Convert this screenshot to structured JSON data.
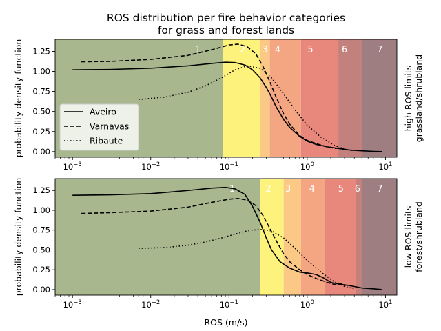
{
  "title_line1": "ROS distribution per fire behavior categories",
  "title_line2": "for grass and forest lands",
  "colors": {
    "cat1": "#a8b78e",
    "cat2": "#fdf37c",
    "cat3": "#fbc985",
    "cat4": "#f4a582",
    "cat5": "#e8877b",
    "cat6": "#c3817d",
    "cat7": "#9e7e80"
  },
  "chart_data": [
    {
      "type": "line",
      "panel": "top",
      "title": "ROS distribution per fire behavior categories for grass and forest lands",
      "xlabel": "",
      "ylabel": "probability density function",
      "side_label_line1": "high ROS limits",
      "side_label_line2": "grassland/shrubland",
      "xscale": "log",
      "xlim": [
        0.0006,
        14
      ],
      "ylim": [
        -0.07,
        1.4
      ],
      "xticks": [
        {
          "v": 0.001,
          "label": "10",
          "exp": "−3"
        },
        {
          "v": 0.01,
          "label": "10",
          "exp": "−2"
        },
        {
          "v": 0.1,
          "label": "10",
          "exp": "−1"
        },
        {
          "v": 1,
          "label": "10",
          "exp": "0"
        },
        {
          "v": 10,
          "label": "10",
          "exp": "1"
        }
      ],
      "yticks": [
        "0.00",
        "0.25",
        "0.50",
        "0.75",
        "1.00",
        "1.25"
      ],
      "ytick_values": [
        0,
        0.25,
        0.5,
        0.75,
        1.0,
        1.25
      ],
      "categories": [
        {
          "label": "1",
          "from": 0.0006,
          "to": 0.0833
        },
        {
          "label": "2",
          "from": 0.0833,
          "to": 0.25
        },
        {
          "label": "3",
          "from": 0.25,
          "to": 0.333
        },
        {
          "label": "4",
          "from": 0.333,
          "to": 0.833
        },
        {
          "label": "5",
          "from": 0.833,
          "to": 2.5
        },
        {
          "label": "6",
          "from": 2.5,
          "to": 5.0
        },
        {
          "label": "7",
          "from": 5.0,
          "to": 14
        }
      ],
      "category_label_x": [
        0.04,
        0.15,
        0.29,
        0.42,
        1.1,
        3.0,
        8.5
      ],
      "category_label_y": 1.28,
      "legend": {
        "position": "lower-left",
        "entries": [
          "Aveiro",
          "Varnavas",
          "Ribaute"
        ]
      },
      "series": [
        {
          "name": "Aveiro",
          "style": "solid",
          "x": [
            0.001,
            0.003,
            0.01,
            0.03,
            0.06,
            0.09,
            0.12,
            0.16,
            0.2,
            0.25,
            0.3,
            0.35,
            0.4,
            0.5,
            0.6,
            0.8,
            1.0,
            1.3,
            1.8,
            2.5,
            3.5,
            5,
            7,
            9
          ],
          "y": [
            1.02,
            1.025,
            1.04,
            1.07,
            1.1,
            1.115,
            1.11,
            1.08,
            1.02,
            0.92,
            0.8,
            0.68,
            0.56,
            0.4,
            0.3,
            0.19,
            0.13,
            0.09,
            0.06,
            0.04,
            0.02,
            0.01,
            0.003,
            0.0
          ]
        },
        {
          "name": "Varnavas",
          "style": "dashed",
          "x": [
            0.0013,
            0.003,
            0.01,
            0.03,
            0.06,
            0.1,
            0.13,
            0.17,
            0.22,
            0.27,
            0.33,
            0.4,
            0.5,
            0.6,
            0.8,
            1.0,
            1.3,
            1.8,
            2.3,
            2.7,
            3.1
          ],
          "y": [
            1.12,
            1.125,
            1.15,
            1.2,
            1.27,
            1.33,
            1.34,
            1.31,
            1.22,
            1.07,
            0.88,
            0.68,
            0.47,
            0.34,
            0.2,
            0.14,
            0.1,
            0.06,
            0.04,
            0.05,
            0.02
          ]
        },
        {
          "name": "Ribaute",
          "style": "dotted",
          "x": [
            0.007,
            0.015,
            0.03,
            0.05,
            0.08,
            0.12,
            0.17,
            0.25,
            0.35,
            0.5,
            0.7,
            1.0,
            1.5,
            2.2,
            3.0,
            4.0
          ],
          "y": [
            0.65,
            0.68,
            0.74,
            0.82,
            0.92,
            1.02,
            1.07,
            1.04,
            0.92,
            0.72,
            0.52,
            0.33,
            0.18,
            0.08,
            0.03,
            0.01
          ]
        }
      ]
    },
    {
      "type": "line",
      "panel": "bottom",
      "title": "",
      "xlabel": "ROS (m/s)",
      "ylabel": "probability density function",
      "side_label_line1": "low ROS limits",
      "side_label_line2": "forest/shrubland",
      "xscale": "log",
      "xlim": [
        0.0006,
        14
      ],
      "ylim": [
        -0.07,
        1.4
      ],
      "xticks": [
        {
          "v": 0.001,
          "label": "10",
          "exp": "−3"
        },
        {
          "v": 0.01,
          "label": "10",
          "exp": "−2"
        },
        {
          "v": 0.1,
          "label": "10",
          "exp": "−1"
        },
        {
          "v": 1,
          "label": "10",
          "exp": "0"
        },
        {
          "v": 10,
          "label": "10",
          "exp": "1"
        }
      ],
      "yticks": [
        "0.00",
        "0.25",
        "0.50",
        "0.75",
        "1.00",
        "1.25"
      ],
      "ytick_values": [
        0,
        0.25,
        0.5,
        0.75,
        1.0,
        1.25
      ],
      "categories": [
        {
          "label": "1",
          "from": 0.0006,
          "to": 0.25
        },
        {
          "label": "2",
          "from": 0.25,
          "to": 0.5
        },
        {
          "label": "3",
          "from": 0.5,
          "to": 0.833
        },
        {
          "label": "4",
          "from": 0.833,
          "to": 1.67
        },
        {
          "label": "5",
          "from": 1.67,
          "to": 4.17
        },
        {
          "label": "6",
          "from": 4.17,
          "to": 5.0
        },
        {
          "label": "7",
          "from": 5.0,
          "to": 14
        }
      ],
      "category_label_x": [
        0.11,
        0.32,
        0.57,
        1.15,
        2.7,
        4.4,
        8.5
      ],
      "category_label_y": 1.28,
      "series": [
        {
          "name": "Aveiro",
          "style": "solid",
          "x": [
            0.001,
            0.003,
            0.01,
            0.03,
            0.06,
            0.09,
            0.12,
            0.16,
            0.2,
            0.25,
            0.3,
            0.35,
            0.45,
            0.6,
            0.8,
            1.0,
            1.3,
            1.6,
            2.0,
            2.5,
            3.5,
            5,
            7,
            9
          ],
          "y": [
            1.19,
            1.195,
            1.21,
            1.25,
            1.28,
            1.29,
            1.27,
            1.2,
            1.05,
            0.85,
            0.65,
            0.5,
            0.35,
            0.27,
            0.22,
            0.21,
            0.19,
            0.15,
            0.09,
            0.07,
            0.05,
            0.02,
            0.01,
            0.0
          ]
        },
        {
          "name": "Varnavas",
          "style": "dashed",
          "x": [
            0.0013,
            0.003,
            0.01,
            0.03,
            0.06,
            0.1,
            0.13,
            0.17,
            0.22,
            0.27,
            0.33,
            0.4,
            0.5,
            0.6,
            0.8,
            1.0,
            1.3,
            1.8,
            2.3,
            2.7,
            3.1
          ],
          "y": [
            0.96,
            0.97,
            0.99,
            1.04,
            1.1,
            1.14,
            1.15,
            1.13,
            1.06,
            0.94,
            0.78,
            0.62,
            0.45,
            0.35,
            0.25,
            0.19,
            0.14,
            0.09,
            0.06,
            0.08,
            0.05
          ]
        },
        {
          "name": "Ribaute",
          "style": "dotted",
          "x": [
            0.007,
            0.015,
            0.03,
            0.05,
            0.08,
            0.12,
            0.17,
            0.25,
            0.35,
            0.5,
            0.7,
            1.0,
            1.5,
            2.2,
            3.0,
            4.0
          ],
          "y": [
            0.52,
            0.53,
            0.56,
            0.6,
            0.65,
            0.7,
            0.74,
            0.76,
            0.74,
            0.65,
            0.52,
            0.37,
            0.22,
            0.1,
            0.04,
            0.01
          ]
        }
      ]
    }
  ]
}
